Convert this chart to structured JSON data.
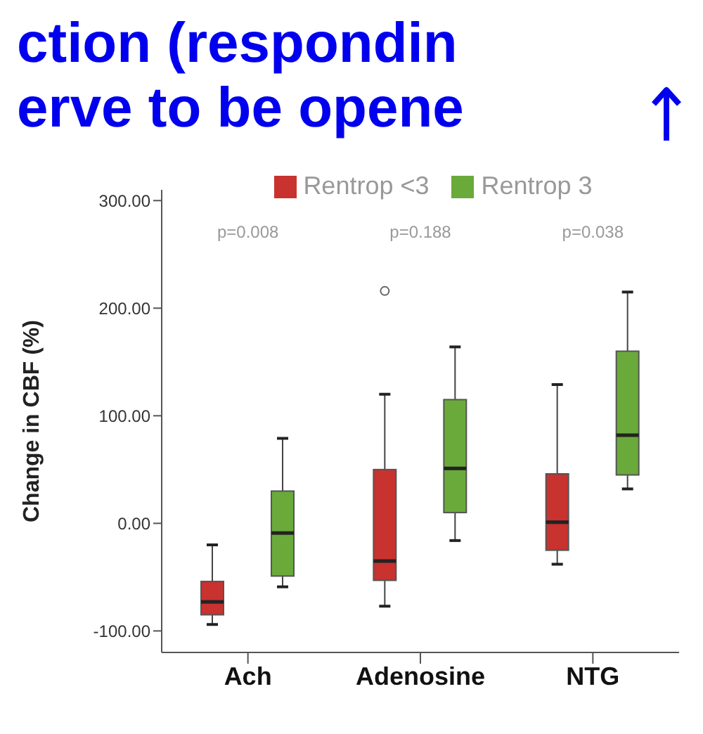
{
  "chart_data": {
    "type": "box",
    "ylabel": "Change in CBF (%)",
    "categories": [
      "Ach",
      "Adenosine",
      "NTG"
    ],
    "ylim": [
      -120,
      310
    ],
    "yticks": [
      {
        "value": -100,
        "label": "-100.00"
      },
      {
        "value": 0,
        "label": "0.00"
      },
      {
        "value": 100,
        "label": "100.00"
      },
      {
        "value": 200,
        "label": "200.00"
      },
      {
        "value": 300,
        "label": "300.00"
      }
    ],
    "legend": "top",
    "series": [
      {
        "name": "Rentrop <3",
        "color": "#c8322f",
        "boxes": [
          {
            "low": -94,
            "q1": -85,
            "median": -73,
            "q3": -54,
            "high": -20
          },
          {
            "low": -77,
            "q1": -53,
            "median": -35,
            "q3": 50,
            "high": 120,
            "outliers": [
              216
            ]
          },
          {
            "low": -38,
            "q1": -25,
            "median": 1,
            "q3": 46,
            "high": 129
          }
        ]
      },
      {
        "name": "Rentrop 3",
        "color": "#6aaa3a",
        "boxes": [
          {
            "low": -59,
            "q1": -49,
            "median": -9,
            "q3": 30,
            "high": 79
          },
          {
            "low": -16,
            "q1": 10,
            "median": 51,
            "q3": 115,
            "high": 164
          },
          {
            "low": 32,
            "q1": 45,
            "median": 82,
            "q3": 160,
            "high": 215
          }
        ]
      }
    ],
    "annotations": [
      "ction (respondin",
      "erve to be opene",
      "p=0.008",
      "p=0.188",
      "p=0.038"
    ]
  }
}
